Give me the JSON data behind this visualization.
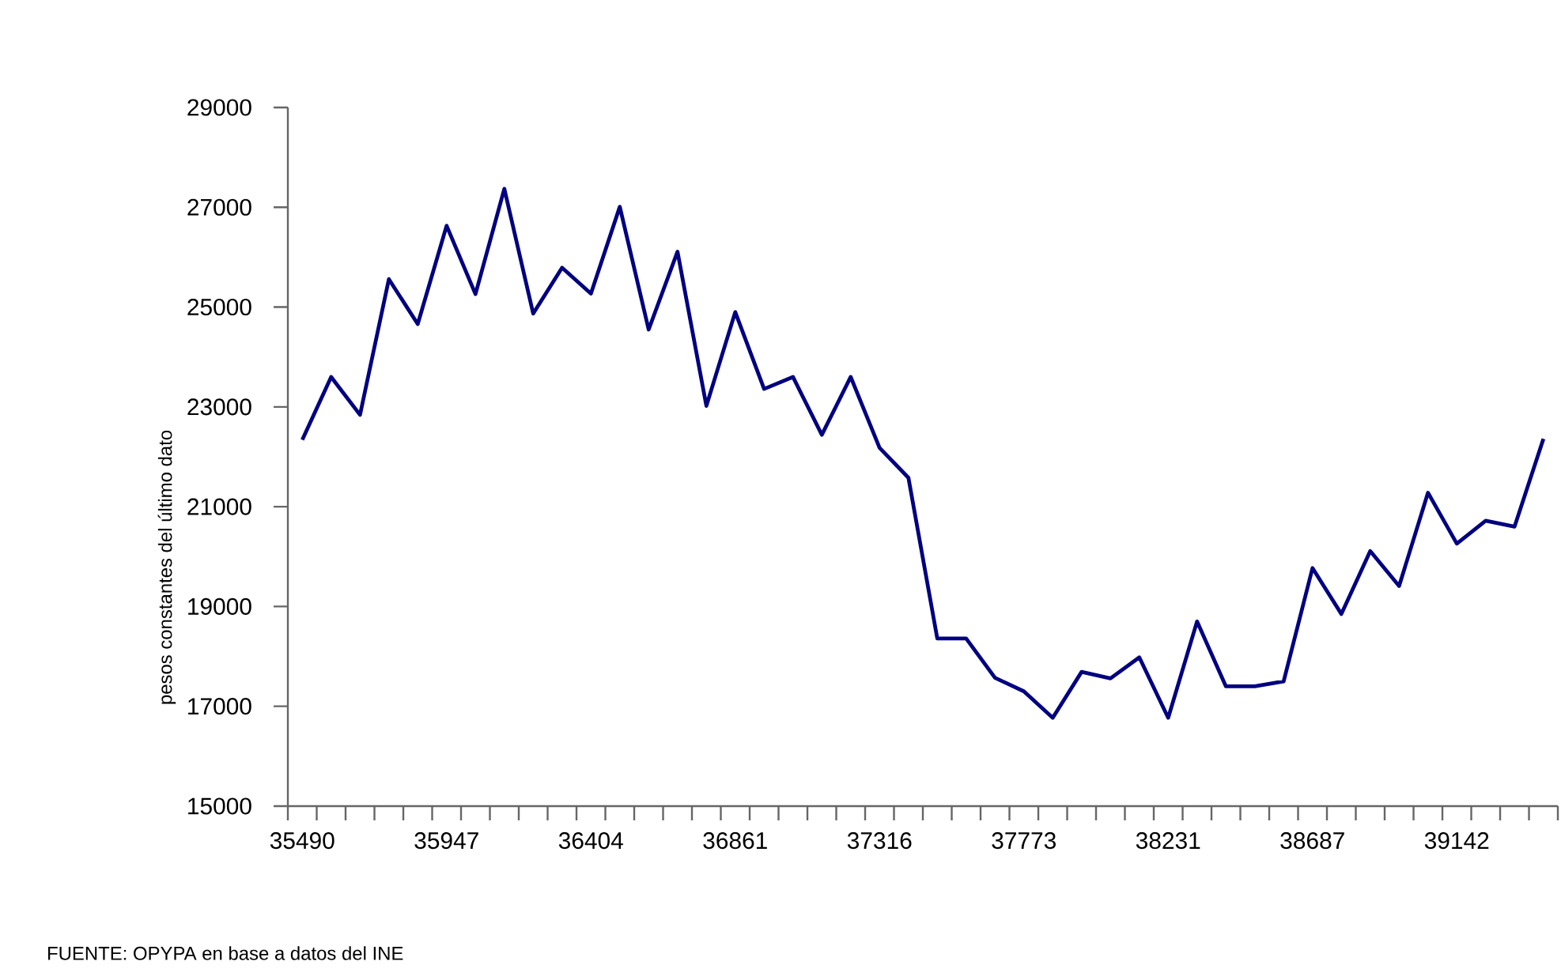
{
  "chart_data": {
    "type": "line",
    "ylabel": "pesos constantes del último dato",
    "categories": [
      "35490",
      null,
      null,
      null,
      null,
      "35947",
      null,
      null,
      null,
      null,
      "36404",
      null,
      null,
      null,
      null,
      "36861",
      null,
      null,
      null,
      null,
      "37316",
      null,
      null,
      null,
      null,
      "37773",
      null,
      null,
      null,
      null,
      "38231",
      null,
      null,
      null,
      null,
      "38687",
      null,
      null,
      null,
      null,
      "39142",
      null,
      null,
      null
    ],
    "series": [
      {
        "color": "#000080",
        "values": [
          22340,
          23600,
          22840,
          25560,
          24660,
          26630,
          25260,
          27370,
          24870,
          25790,
          25270,
          27010,
          24550,
          26110,
          23020,
          24900,
          23360,
          23600,
          22440,
          23600,
          22180,
          21580,
          18360,
          18360,
          17570,
          17300,
          16770,
          17690,
          17560,
          17980,
          16770,
          18700,
          17400,
          17400,
          17500,
          19770,
          18850,
          20110,
          19410,
          21280,
          20260,
          20720,
          20600,
          22360
        ]
      }
    ],
    "ylim": [
      15000,
      29000
    ],
    "yticks": [
      15000,
      17000,
      19000,
      21000,
      23000,
      25000,
      27000,
      29000
    ],
    "grid": false,
    "legend": false,
    "marker": "none",
    "line_style": "solid",
    "annotations": [
      "FUENTE: OPYPA en base a datos del INE"
    ]
  }
}
